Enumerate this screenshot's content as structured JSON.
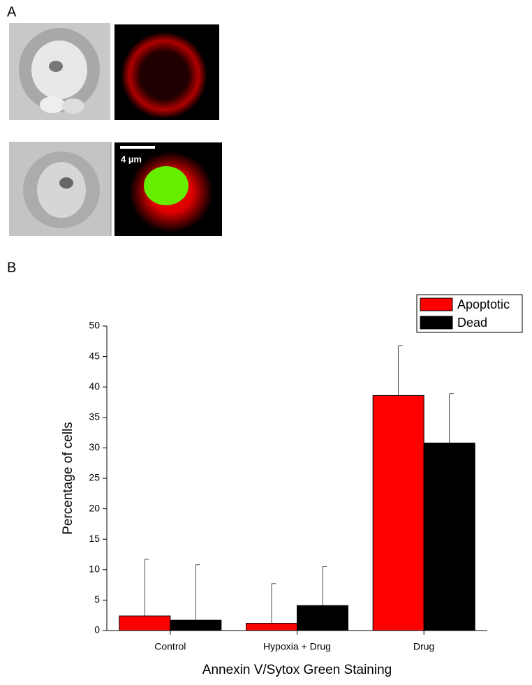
{
  "panels": {
    "a": "A",
    "b": "B"
  },
  "scale_bar": "4 µm",
  "chart_data": {
    "type": "bar",
    "x_label": "Annexin V/Sytox Green Staining",
    "y_label": "Percentage of cells",
    "categories": [
      "Control",
      "Hypoxia + Drug",
      "Drug"
    ],
    "series": [
      {
        "name": "Apoptotic",
        "color": "#ff0000",
        "values": [
          2.4,
          1.2,
          38.6
        ],
        "errors": [
          9.3,
          6.5,
          8.2
        ]
      },
      {
        "name": "Dead",
        "color": "#000000",
        "values": [
          1.7,
          4.1,
          30.8
        ],
        "errors": [
          9.1,
          6.4,
          8.1
        ]
      }
    ],
    "ylim": [
      0,
      50
    ],
    "yticks": [
      0,
      5,
      10,
      15,
      20,
      25,
      30,
      35,
      40,
      45,
      50
    ],
    "legend": "top-right"
  }
}
